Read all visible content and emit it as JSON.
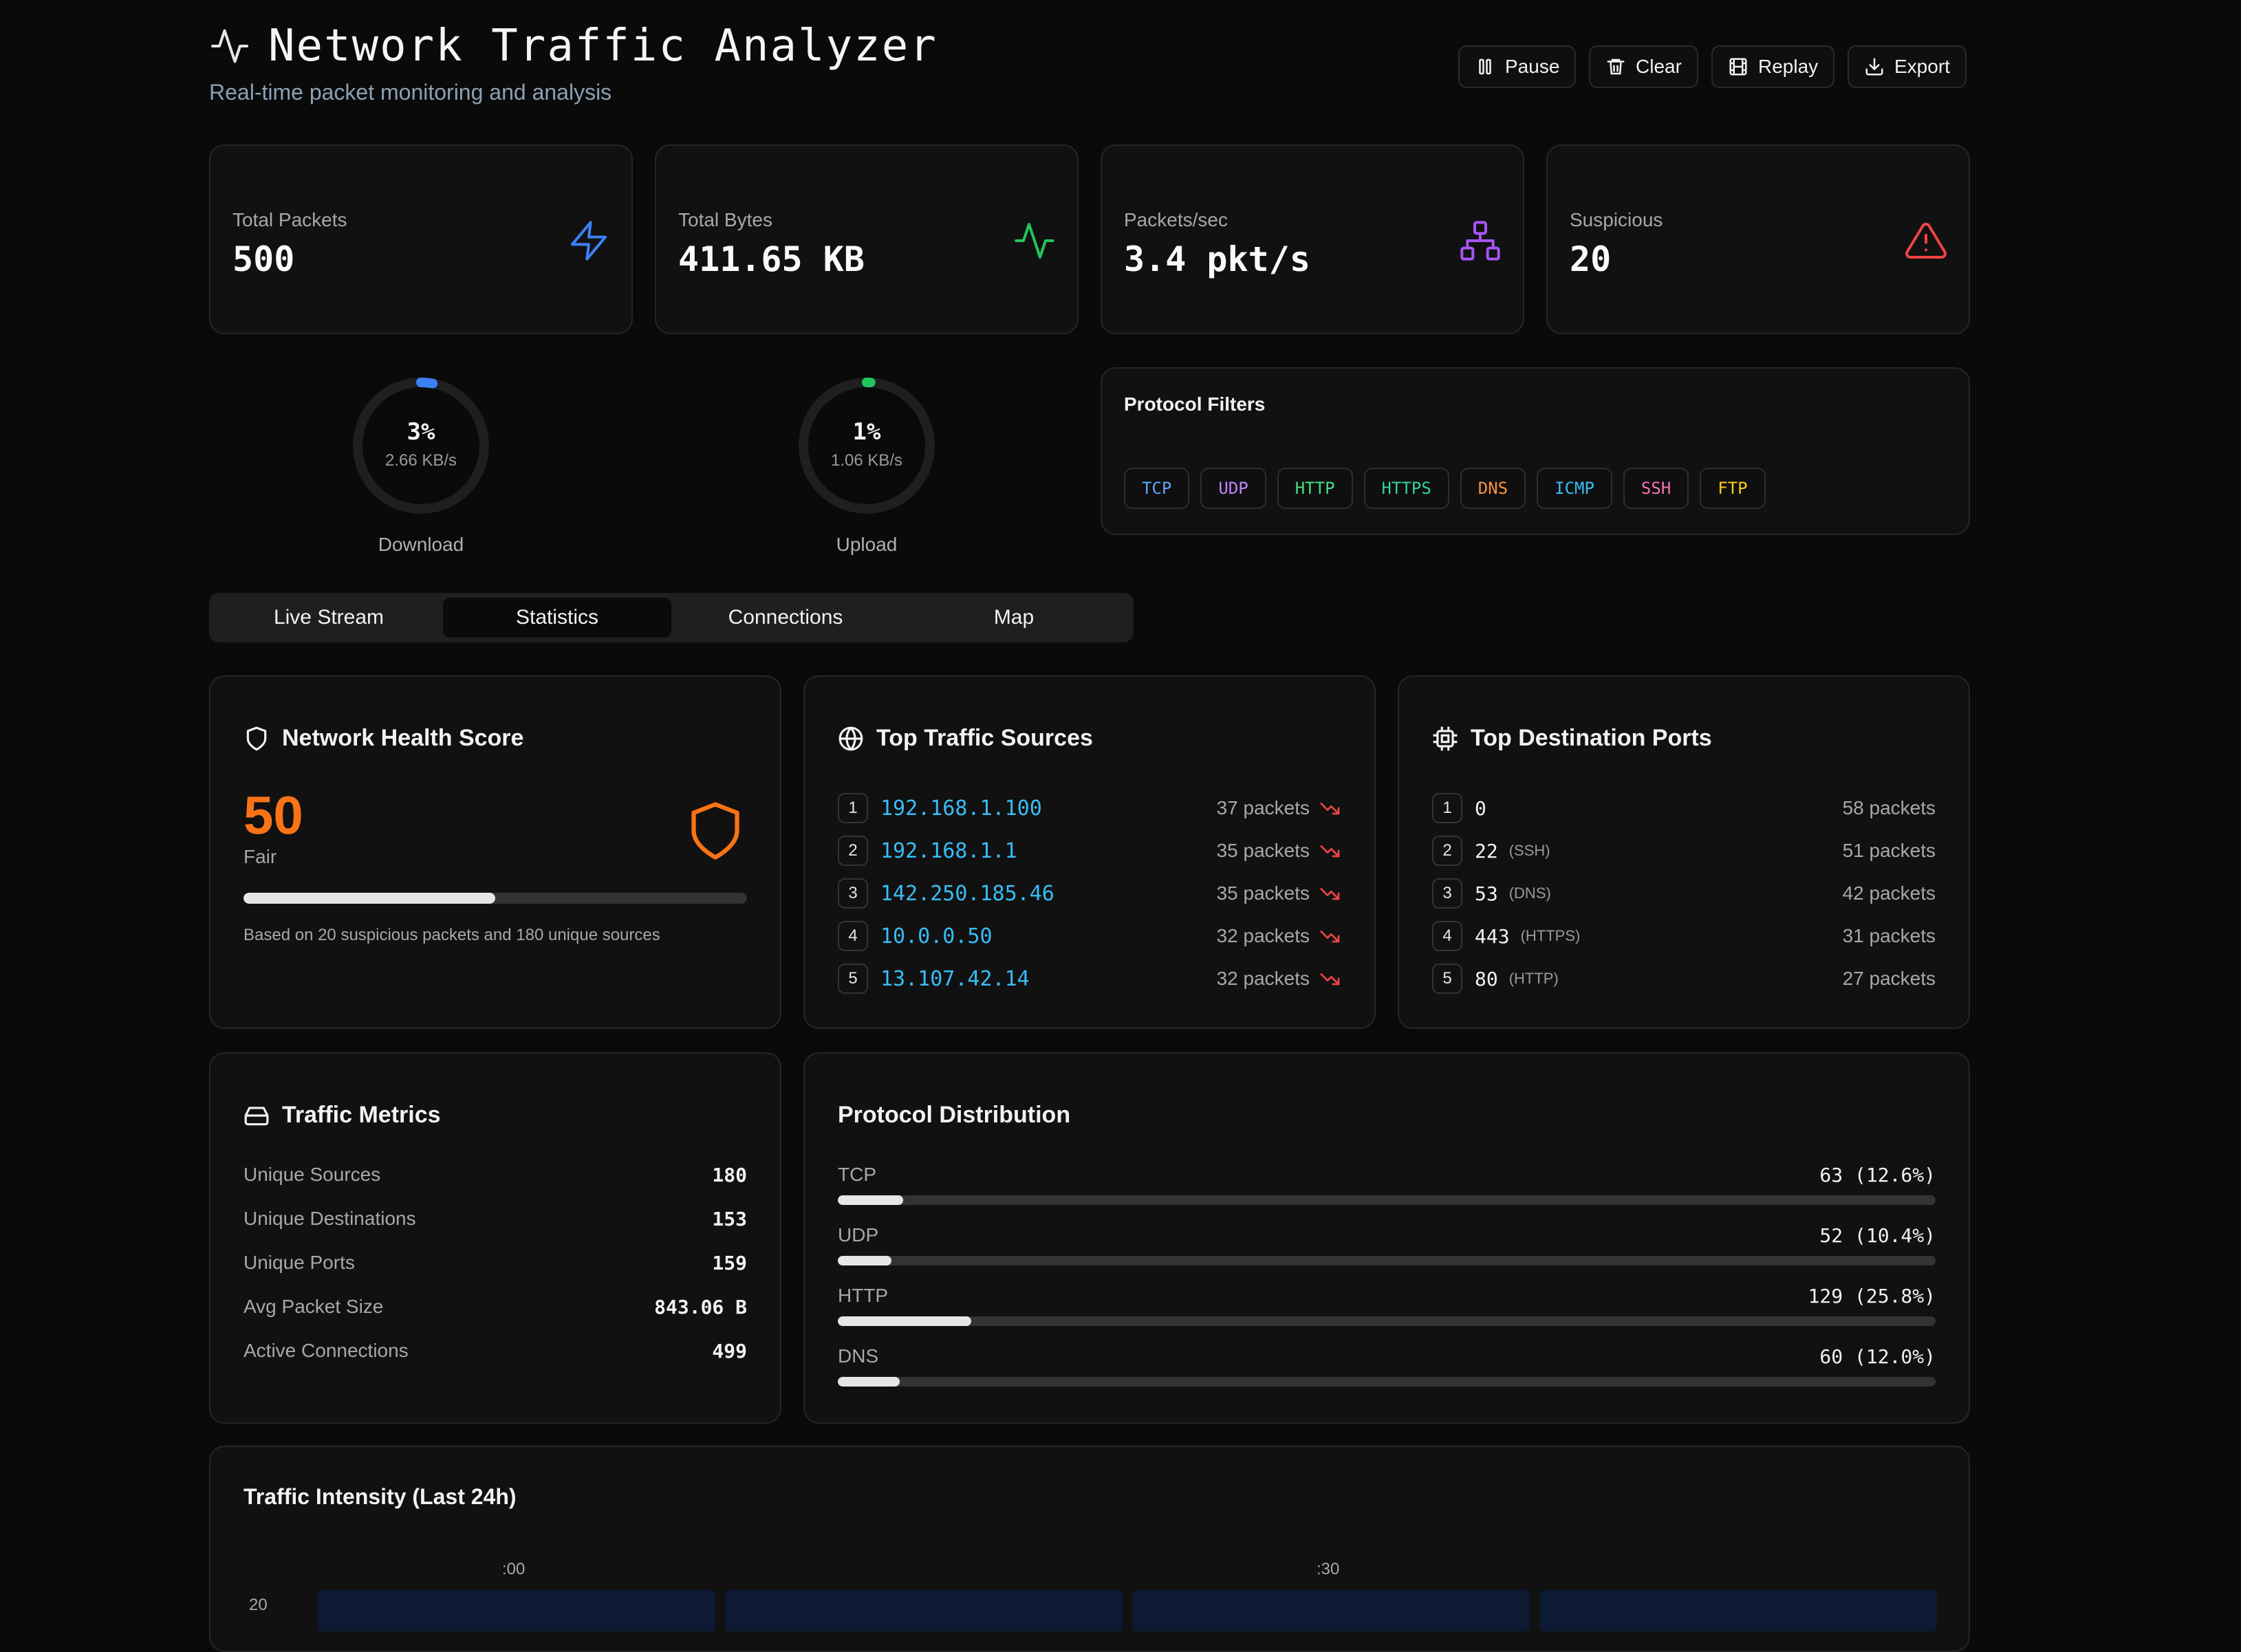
{
  "header": {
    "title": "Network Traffic Analyzer",
    "subtitle": "Real-time packet monitoring and analysis",
    "buttons": [
      {
        "label": "Pause",
        "icon": "pause-icon"
      },
      {
        "label": "Clear",
        "icon": "trash-icon"
      },
      {
        "label": "Replay",
        "icon": "film-icon"
      },
      {
        "label": "Export",
        "icon": "download-icon"
      }
    ]
  },
  "stats": [
    {
      "label": "Total Packets",
      "value": "500",
      "icon": "zap-icon",
      "color": "#3b82f6"
    },
    {
      "label": "Total Bytes",
      "value": "411.65 KB",
      "icon": "activity-icon",
      "color": "#22c55e"
    },
    {
      "label": "Packets/sec",
      "value": "3.4 pkt/s",
      "icon": "network-icon",
      "color": "#a855f7"
    },
    {
      "label": "Suspicious",
      "value": "20",
      "icon": "alert-triangle-icon",
      "color": "#ef4444"
    }
  ],
  "gauges": {
    "download": {
      "percent": "3%",
      "percent_value": 3,
      "rate": "2.66 KB/s",
      "label": "Download",
      "color": "#3b82f6"
    },
    "upload": {
      "percent": "1%",
      "percent_value": 1,
      "rate": "1.06 KB/s",
      "label": "Upload",
      "color": "#22c55e"
    }
  },
  "protocol_filters": {
    "title": "Protocol Filters",
    "chips": [
      {
        "label": "TCP",
        "color": "#60a5fa"
      },
      {
        "label": "UDP",
        "color": "#c084fc"
      },
      {
        "label": "HTTP",
        "color": "#4ade80"
      },
      {
        "label": "HTTPS",
        "color": "#34d399"
      },
      {
        "label": "DNS",
        "color": "#fb923c"
      },
      {
        "label": "ICMP",
        "color": "#38bdf8"
      },
      {
        "label": "SSH",
        "color": "#f472b6"
      },
      {
        "label": "FTP",
        "color": "#facc15"
      }
    ]
  },
  "tabs": [
    "Live Stream",
    "Statistics",
    "Connections",
    "Map"
  ],
  "active_tab": "Statistics",
  "health": {
    "title": "Network Health Score",
    "score": "50",
    "rating": "Fair",
    "progress": 0.5,
    "note": "Based on 20 suspicious packets and 180 unique sources",
    "color": "#f97316"
  },
  "top_sources": {
    "title": "Top Traffic Sources",
    "rows": [
      {
        "rank": "1",
        "ip": "192.168.1.100",
        "packets": "37 packets"
      },
      {
        "rank": "2",
        "ip": "192.168.1.1",
        "packets": "35 packets"
      },
      {
        "rank": "3",
        "ip": "142.250.185.46",
        "packets": "35 packets"
      },
      {
        "rank": "4",
        "ip": "10.0.0.50",
        "packets": "32 packets"
      },
      {
        "rank": "5",
        "ip": "13.107.42.14",
        "packets": "32 packets"
      }
    ]
  },
  "top_ports": {
    "title": "Top Destination Ports",
    "rows": [
      {
        "rank": "1",
        "port": "0",
        "service": "",
        "packets": "58 packets"
      },
      {
        "rank": "2",
        "port": "22",
        "service": "(SSH)",
        "packets": "51 packets"
      },
      {
        "rank": "3",
        "port": "53",
        "service": "(DNS)",
        "packets": "42 packets"
      },
      {
        "rank": "4",
        "port": "443",
        "service": "(HTTPS)",
        "packets": "31 packets"
      },
      {
        "rank": "5",
        "port": "80",
        "service": "(HTTP)",
        "packets": "27 packets"
      }
    ]
  },
  "traffic_metrics": {
    "title": "Traffic Metrics",
    "rows": [
      {
        "label": "Unique Sources",
        "value": "180"
      },
      {
        "label": "Unique Destinations",
        "value": "153"
      },
      {
        "label": "Unique Ports",
        "value": "159"
      },
      {
        "label": "Avg Packet Size",
        "value": "843.06 B"
      },
      {
        "label": "Active Connections",
        "value": "499"
      }
    ]
  },
  "protocol_distribution": {
    "title": "Protocol Distribution",
    "rows": [
      {
        "name": "TCP",
        "value": "63 (12.6%)",
        "percent": 12.6
      },
      {
        "name": "UDP",
        "value": "52 (10.4%)",
        "percent": 10.4
      },
      {
        "name": "HTTP",
        "value": "129 (25.8%)",
        "percent": 25.8
      },
      {
        "name": "DNS",
        "value": "60 (12.0%)",
        "percent": 12.0
      }
    ]
  },
  "traffic_intensity": {
    "title": "Traffic Intensity (Last 24h)",
    "col_labels": [
      ":00",
      ":30"
    ],
    "row_labels": [
      "20"
    ]
  }
}
